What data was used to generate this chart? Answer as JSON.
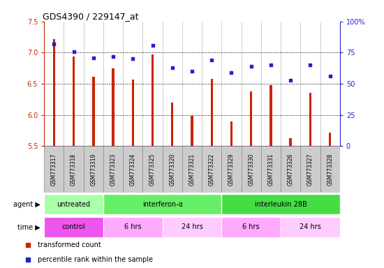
{
  "title": "GDS4390 / 229147_at",
  "samples": [
    "GSM773317",
    "GSM773318",
    "GSM773319",
    "GSM773323",
    "GSM773324",
    "GSM773325",
    "GSM773320",
    "GSM773321",
    "GSM773322",
    "GSM773329",
    "GSM773330",
    "GSM773331",
    "GSM773326",
    "GSM773327",
    "GSM773328"
  ],
  "red_values": [
    7.22,
    6.94,
    6.61,
    6.75,
    6.57,
    6.97,
    6.2,
    5.99,
    6.58,
    5.9,
    6.38,
    6.48,
    5.63,
    6.35,
    5.72
  ],
  "blue_values": [
    82,
    76,
    71,
    72,
    70,
    81,
    63,
    60,
    69,
    59,
    64,
    65,
    53,
    65,
    56
  ],
  "ylim": [
    5.5,
    7.5
  ],
  "y2lim": [
    0,
    100
  ],
  "yticks": [
    5.5,
    6.0,
    6.5,
    7.0,
    7.5
  ],
  "y2ticks": [
    0,
    25,
    50,
    75,
    100
  ],
  "y2ticklabels": [
    "0",
    "25",
    "50",
    "75",
    "100%"
  ],
  "bar_color": "#CC2200",
  "dot_color": "#2222CC",
  "bar_width": 0.12,
  "agent_groups": [
    {
      "label": "untreated",
      "color": "#AAFFAA",
      "start": 0,
      "end": 3
    },
    {
      "label": "interferon-α",
      "color": "#66EE66",
      "start": 3,
      "end": 9
    },
    {
      "label": "interleukin 28B",
      "color": "#44DD44",
      "start": 9,
      "end": 15
    }
  ],
  "time_groups": [
    {
      "label": "control",
      "color": "#EE55EE",
      "start": 0,
      "end": 3
    },
    {
      "label": "6 hrs",
      "color": "#FFAAFF",
      "start": 3,
      "end": 6
    },
    {
      "label": "24 hrs",
      "color": "#FFCCFF",
      "start": 6,
      "end": 9
    },
    {
      "label": "6 hrs",
      "color": "#FFAAFF",
      "start": 9,
      "end": 12
    },
    {
      "label": "24 hrs",
      "color": "#FFCCFF",
      "start": 12,
      "end": 15
    }
  ],
  "legend_items": [
    {
      "label": "transformed count",
      "color": "#CC2200"
    },
    {
      "label": "percentile rank within the sample",
      "color": "#2222CC"
    }
  ],
  "bg_color": "#FFFFFF",
  "tick_bg": "#CCCCCC",
  "cell_border": "#888888"
}
